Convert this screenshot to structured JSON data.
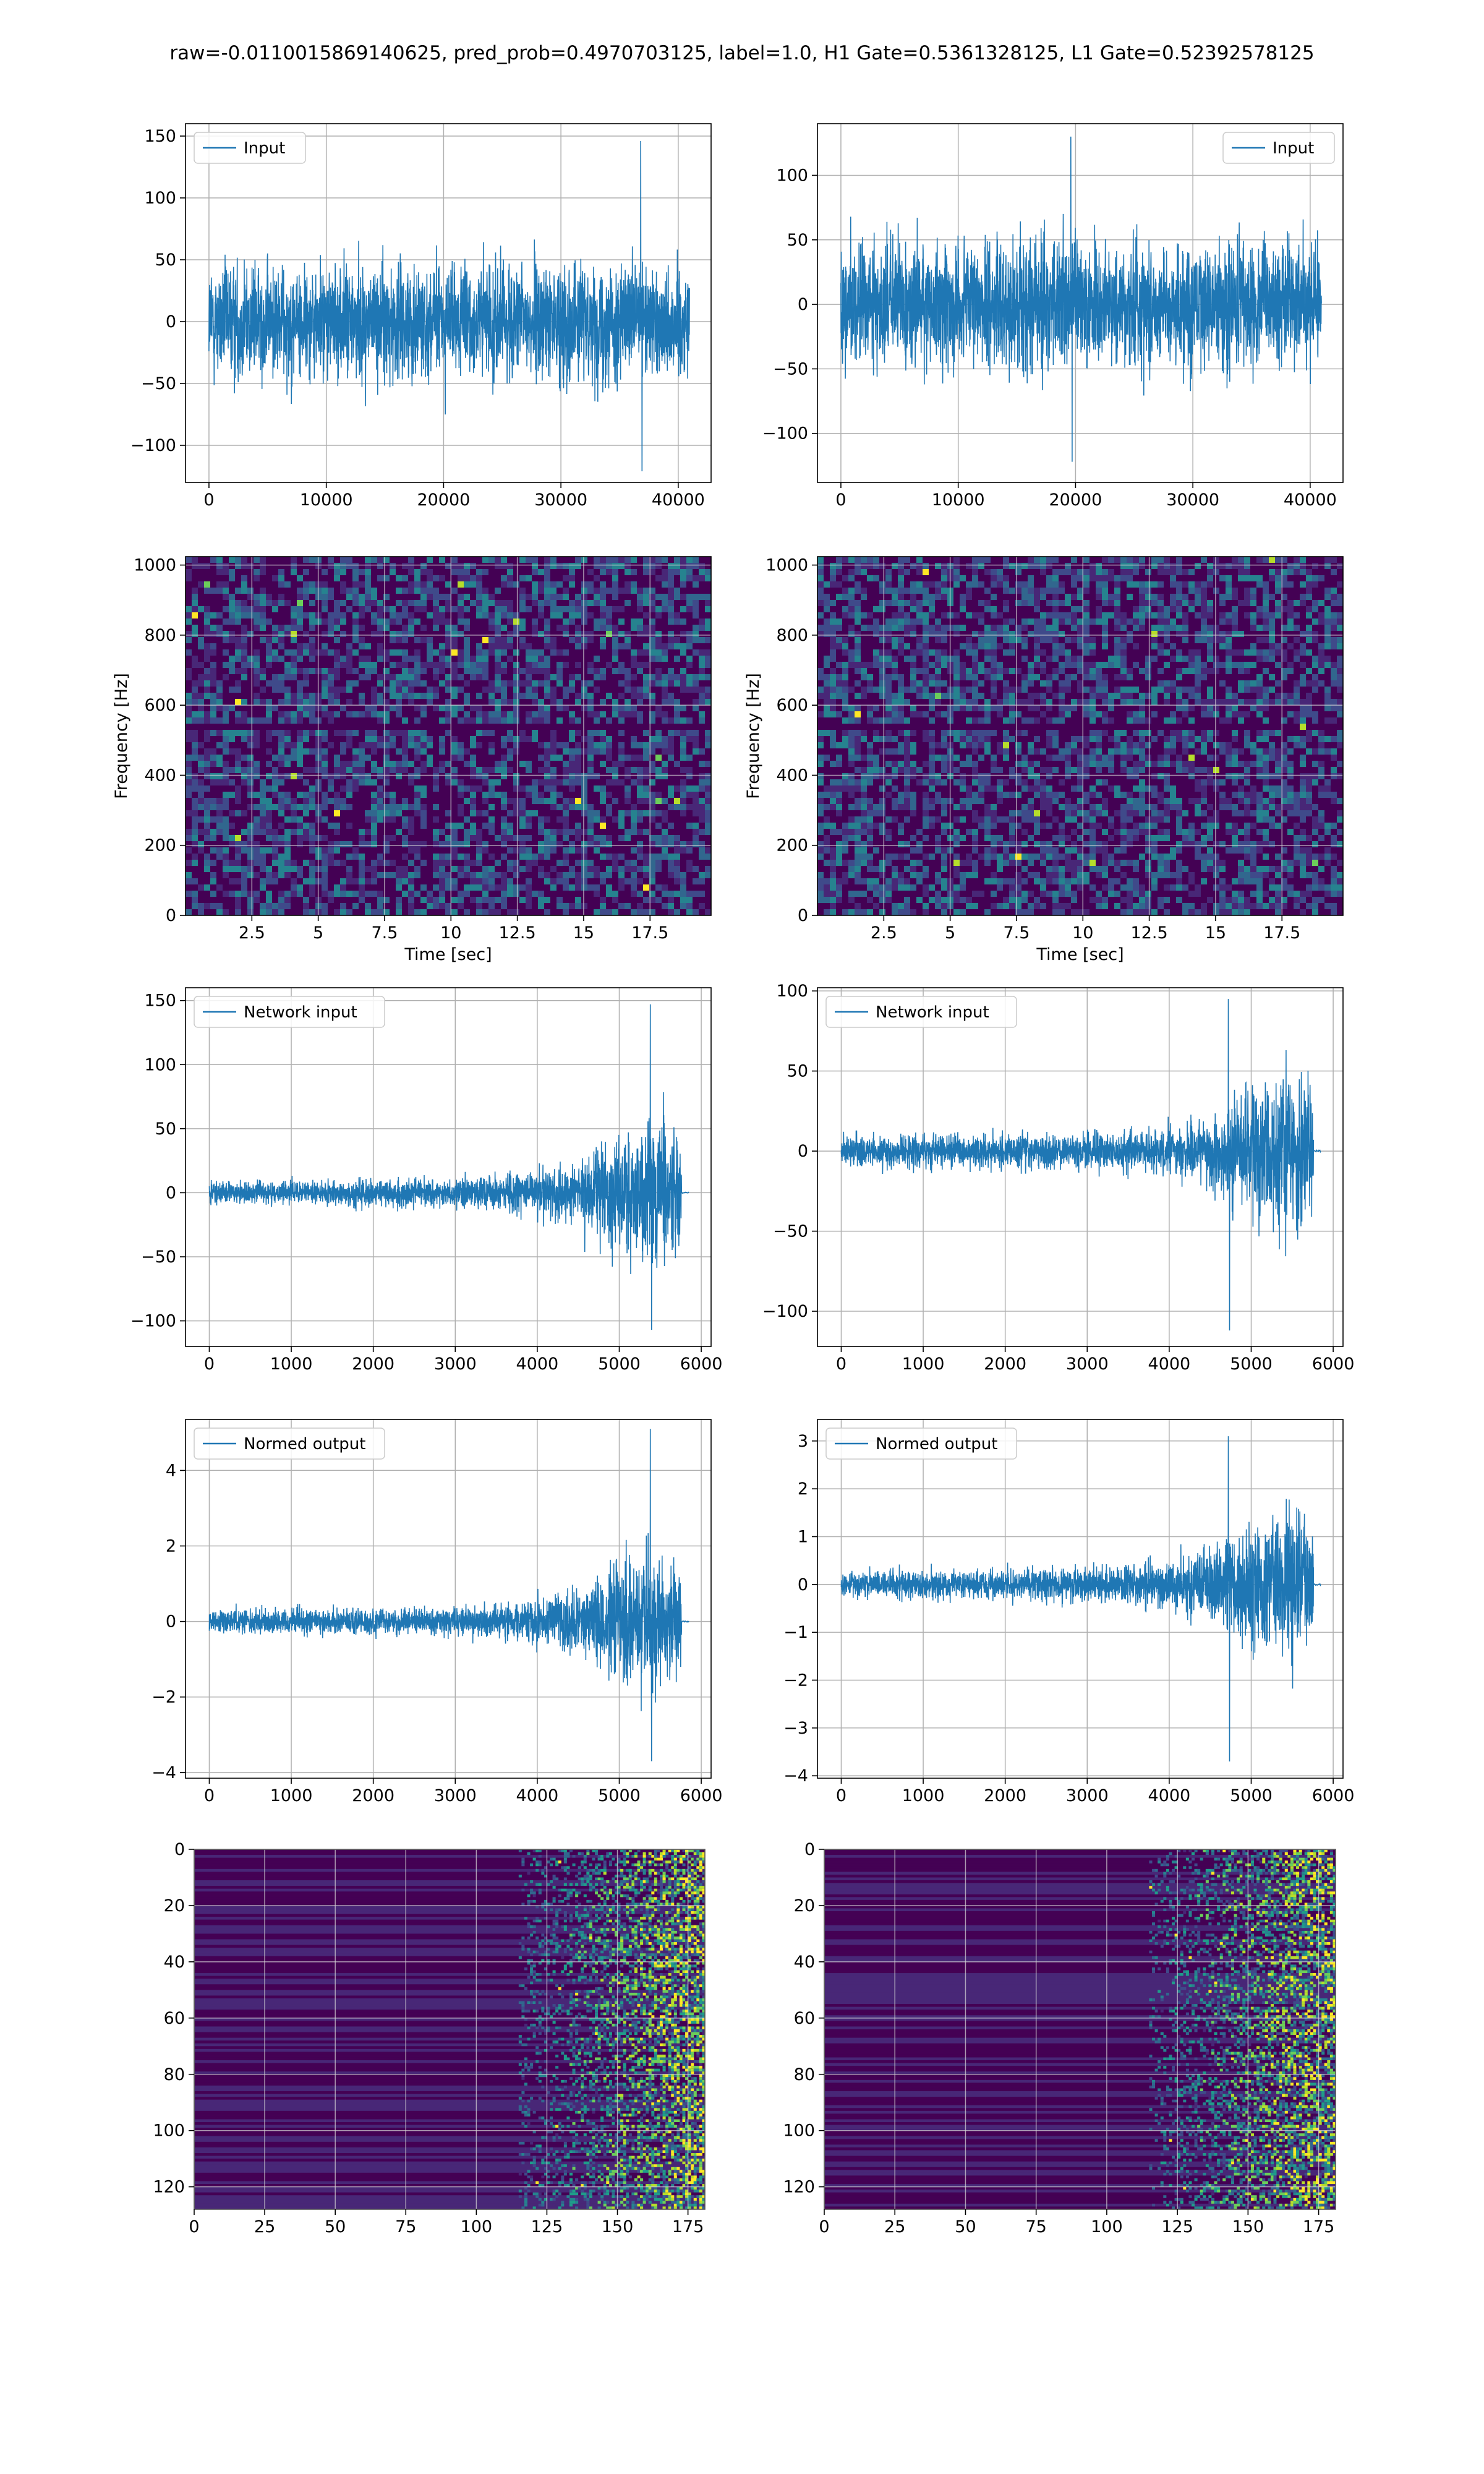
{
  "figure": {
    "title": "raw=-0.0110015869140625, pred_prob=0.4970703125, label=1.0, H1 Gate=0.5361328125, L1 Gate=0.52392578125"
  },
  "colors": {
    "line": "#1f77b4",
    "grid": "#b0b0b0",
    "viridis_dark": "#440154",
    "viridis_mid": "#21918c",
    "viridis_bright": "#fde725"
  },
  "chart_data": [
    {
      "id": "input-left",
      "type": "line",
      "legend": "Input",
      "legend_loc": "upper left",
      "xlim": [
        -2000,
        42800
      ],
      "ylim": [
        -130,
        160
      ],
      "xticks": [
        0,
        10000,
        20000,
        30000,
        40000
      ],
      "yticks": [
        -100,
        -50,
        0,
        50,
        100,
        150
      ],
      "signal": {
        "x_start": 0,
        "x_end": 40960,
        "envelope": [
          [
            0,
            75
          ],
          [
            1,
            75
          ]
        ],
        "peak_max": 146,
        "peak_min": -121,
        "peak_at": 36800
      },
      "grid": true
    },
    {
      "id": "input-right",
      "type": "line",
      "legend": "Input",
      "legend_loc": "upper right",
      "xlim": [
        -2000,
        42800
      ],
      "ylim": [
        -138,
        140
      ],
      "xticks": [
        0,
        10000,
        20000,
        30000,
        40000
      ],
      "yticks": [
        -100,
        -50,
        0,
        50,
        100
      ],
      "signal": {
        "x_start": 0,
        "x_end": 40960,
        "envelope": [
          [
            0,
            80
          ],
          [
            1,
            80
          ]
        ],
        "peak_max": 130,
        "peak_min": -122,
        "peak_at": 19600
      },
      "grid": true
    },
    {
      "id": "spectrogram-left",
      "type": "heatmap",
      "xlabel": "Time [sec]",
      "ylabel": "Frequency [Hz]",
      "xlim": [
        0,
        19.8
      ],
      "ylim": [
        0,
        1024
      ],
      "xticks": [
        2.5,
        5.0,
        7.5,
        10.0,
        12.5,
        15.0,
        17.5
      ],
      "yticks": [
        0,
        200,
        400,
        600,
        800,
        1000
      ],
      "grid": true
    },
    {
      "id": "spectrogram-right",
      "type": "heatmap",
      "xlabel": "Time [sec]",
      "ylabel": "Frequency [Hz]",
      "xlim": [
        0,
        19.8
      ],
      "ylim": [
        0,
        1024
      ],
      "xticks": [
        2.5,
        5.0,
        7.5,
        10.0,
        12.5,
        15.0,
        17.5
      ],
      "yticks": [
        0,
        200,
        400,
        600,
        800,
        1000
      ],
      "grid": true
    },
    {
      "id": "network-input-left",
      "type": "line",
      "legend": "Network input",
      "legend_loc": "upper left",
      "xlim": [
        -290,
        6120
      ],
      "ylim": [
        -120,
        160
      ],
      "xticks": [
        0,
        1000,
        2000,
        3000,
        4000,
        5000,
        6000
      ],
      "yticks": [
        -100,
        -50,
        0,
        50,
        100,
        150
      ],
      "signal": {
        "x_start": 0,
        "x_end": 5760,
        "envelope": [
          [
            0,
            14
          ],
          [
            0.55,
            18
          ],
          [
            0.7,
            28
          ],
          [
            0.8,
            45
          ],
          [
            0.88,
            80
          ],
          [
            0.95,
            85
          ],
          [
            1,
            70
          ]
        ],
        "peak_max": 147,
        "peak_min": -107,
        "peak_at": 5380,
        "tail_end": 5850
      },
      "grid": true
    },
    {
      "id": "network-input-right",
      "type": "line",
      "legend": "Network input",
      "legend_loc": "upper left",
      "xlim": [
        -290,
        6120
      ],
      "ylim": [
        -122,
        102
      ],
      "xticks": [
        0,
        1000,
        2000,
        3000,
        4000,
        5000,
        6000
      ],
      "yticks": [
        -100,
        -50,
        0,
        50,
        100
      ],
      "signal": {
        "x_start": 0,
        "x_end": 5760,
        "envelope": [
          [
            0,
            16
          ],
          [
            0.55,
            18
          ],
          [
            0.7,
            25
          ],
          [
            0.8,
            40
          ],
          [
            0.88,
            70
          ],
          [
            0.95,
            80
          ],
          [
            1,
            65
          ]
        ],
        "peak_max": 95,
        "peak_min": -112,
        "peak_at": 4720,
        "tail_end": 5850
      },
      "grid": true
    },
    {
      "id": "normed-output-left",
      "type": "line",
      "legend": "Normed output",
      "legend_loc": "upper left",
      "xlim": [
        -290,
        6120
      ],
      "ylim": [
        -4.15,
        5.35
      ],
      "xticks": [
        0,
        1000,
        2000,
        3000,
        4000,
        5000,
        6000
      ],
      "yticks": [
        -4,
        -2,
        0,
        2,
        4
      ],
      "signal": {
        "x_start": 0,
        "x_end": 5760,
        "envelope": [
          [
            0,
            0.5
          ],
          [
            0.55,
            0.6
          ],
          [
            0.7,
            0.9
          ],
          [
            0.8,
            1.5
          ],
          [
            0.88,
            2.6
          ],
          [
            0.95,
            2.9
          ],
          [
            1,
            2.3
          ]
        ],
        "peak_max": 5.1,
        "peak_min": -3.7,
        "peak_at": 5380,
        "tail_end": 5850
      },
      "grid": true
    },
    {
      "id": "normed-output-right",
      "type": "line",
      "legend": "Normed output",
      "legend_loc": "upper left",
      "xlim": [
        -290,
        6120
      ],
      "ylim": [
        -4.05,
        3.45
      ],
      "xticks": [
        0,
        1000,
        2000,
        3000,
        4000,
        5000,
        6000
      ],
      "yticks": [
        -4,
        -3,
        -2,
        -1,
        0,
        1,
        2,
        3
      ],
      "signal": {
        "x_start": 0,
        "x_end": 5760,
        "envelope": [
          [
            0,
            0.45
          ],
          [
            0.55,
            0.55
          ],
          [
            0.7,
            0.8
          ],
          [
            0.8,
            1.3
          ],
          [
            0.88,
            2.2
          ],
          [
            0.95,
            2.6
          ],
          [
            1,
            2.1
          ]
        ],
        "peak_max": 3.1,
        "peak_min": -3.7,
        "peak_at": 4720,
        "tail_end": 5850
      },
      "grid": true
    },
    {
      "id": "feature-map-left",
      "type": "heatmap",
      "xlim": [
        0,
        181
      ],
      "ylim": [
        128,
        0
      ],
      "xticks": [
        0,
        25,
        50,
        75,
        100,
        125,
        150,
        175
      ],
      "yticks": [
        0,
        20,
        40,
        60,
        80,
        100,
        120
      ],
      "activation_onset": 125,
      "grid": true
    },
    {
      "id": "feature-map-right",
      "type": "heatmap",
      "xlim": [
        0,
        181
      ],
      "ylim": [
        128,
        0
      ],
      "xticks": [
        0,
        25,
        50,
        75,
        100,
        125,
        150,
        175
      ],
      "yticks": [
        0,
        20,
        40,
        60,
        80,
        100,
        120
      ],
      "activation_onset": 125,
      "grid": true
    }
  ]
}
